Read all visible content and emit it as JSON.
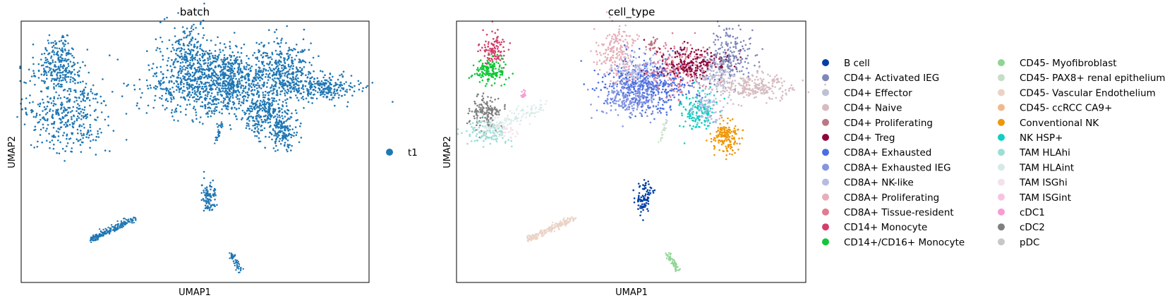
{
  "chart_data": [
    {
      "type": "scatter",
      "title": "batch",
      "xlabel": "UMAP1",
      "ylabel": "UMAP2",
      "grid": false,
      "legend_position": "right",
      "legend": [
        {
          "name": "t1",
          "color": "#1f77b4"
        }
      ]
    },
    {
      "type": "scatter",
      "title": "cell_type",
      "xlabel": "UMAP1",
      "ylabel": "UMAP2",
      "grid": false,
      "legend_position": "right",
      "legend": [
        {
          "name": "B cell",
          "color": "#023fa5"
        },
        {
          "name": "CD4+ Activated IEG",
          "color": "#7d87b9"
        },
        {
          "name": "CD4+ Effector",
          "color": "#bec1d4"
        },
        {
          "name": "CD4+ Naive",
          "color": "#d6bcc0"
        },
        {
          "name": "CD4+ Proliferating",
          "color": "#bb7784"
        },
        {
          "name": "CD4+ Treg",
          "color": "#8e063b"
        },
        {
          "name": "CD8A+ Exhausted",
          "color": "#4a6fe3"
        },
        {
          "name": "CD8A+ Exhausted IEG",
          "color": "#8595e1"
        },
        {
          "name": "CD8A+ NK-like",
          "color": "#b5bbe3"
        },
        {
          "name": "CD8A+ Proliferating",
          "color": "#e6afb9"
        },
        {
          "name": "CD8A+ Tissue-resident",
          "color": "#e07b91"
        },
        {
          "name": "CD14+ Monocyte",
          "color": "#d33f6a"
        },
        {
          "name": "CD14+/CD16+ Monocyte",
          "color": "#11c638"
        },
        {
          "name": "CD45- Myofibroblast",
          "color": "#8dd593"
        },
        {
          "name": "CD45- PAX8+ renal epithelium",
          "color": "#c6dec7"
        },
        {
          "name": "CD45- Vascular Endothelium",
          "color": "#ead3c6"
        },
        {
          "name": "CD45- ccRCC CA9+",
          "color": "#f0b98d"
        },
        {
          "name": "Conventional NK",
          "color": "#ef9708"
        },
        {
          "name": "NK HSP+",
          "color": "#0fcfc0"
        },
        {
          "name": "TAM HLAhi",
          "color": "#9cded6"
        },
        {
          "name": "TAM HLAint",
          "color": "#d5eae7"
        },
        {
          "name": "TAM ISGhi",
          "color": "#f3e1eb"
        },
        {
          "name": "TAM ISGint",
          "color": "#f6c4e1"
        },
        {
          "name": "cDC1",
          "color": "#f79cd4"
        },
        {
          "name": "cDC2",
          "color": "#7f7f7f"
        },
        {
          "name": "pDC",
          "color": "#c7c7c7"
        }
      ]
    }
  ]
}
